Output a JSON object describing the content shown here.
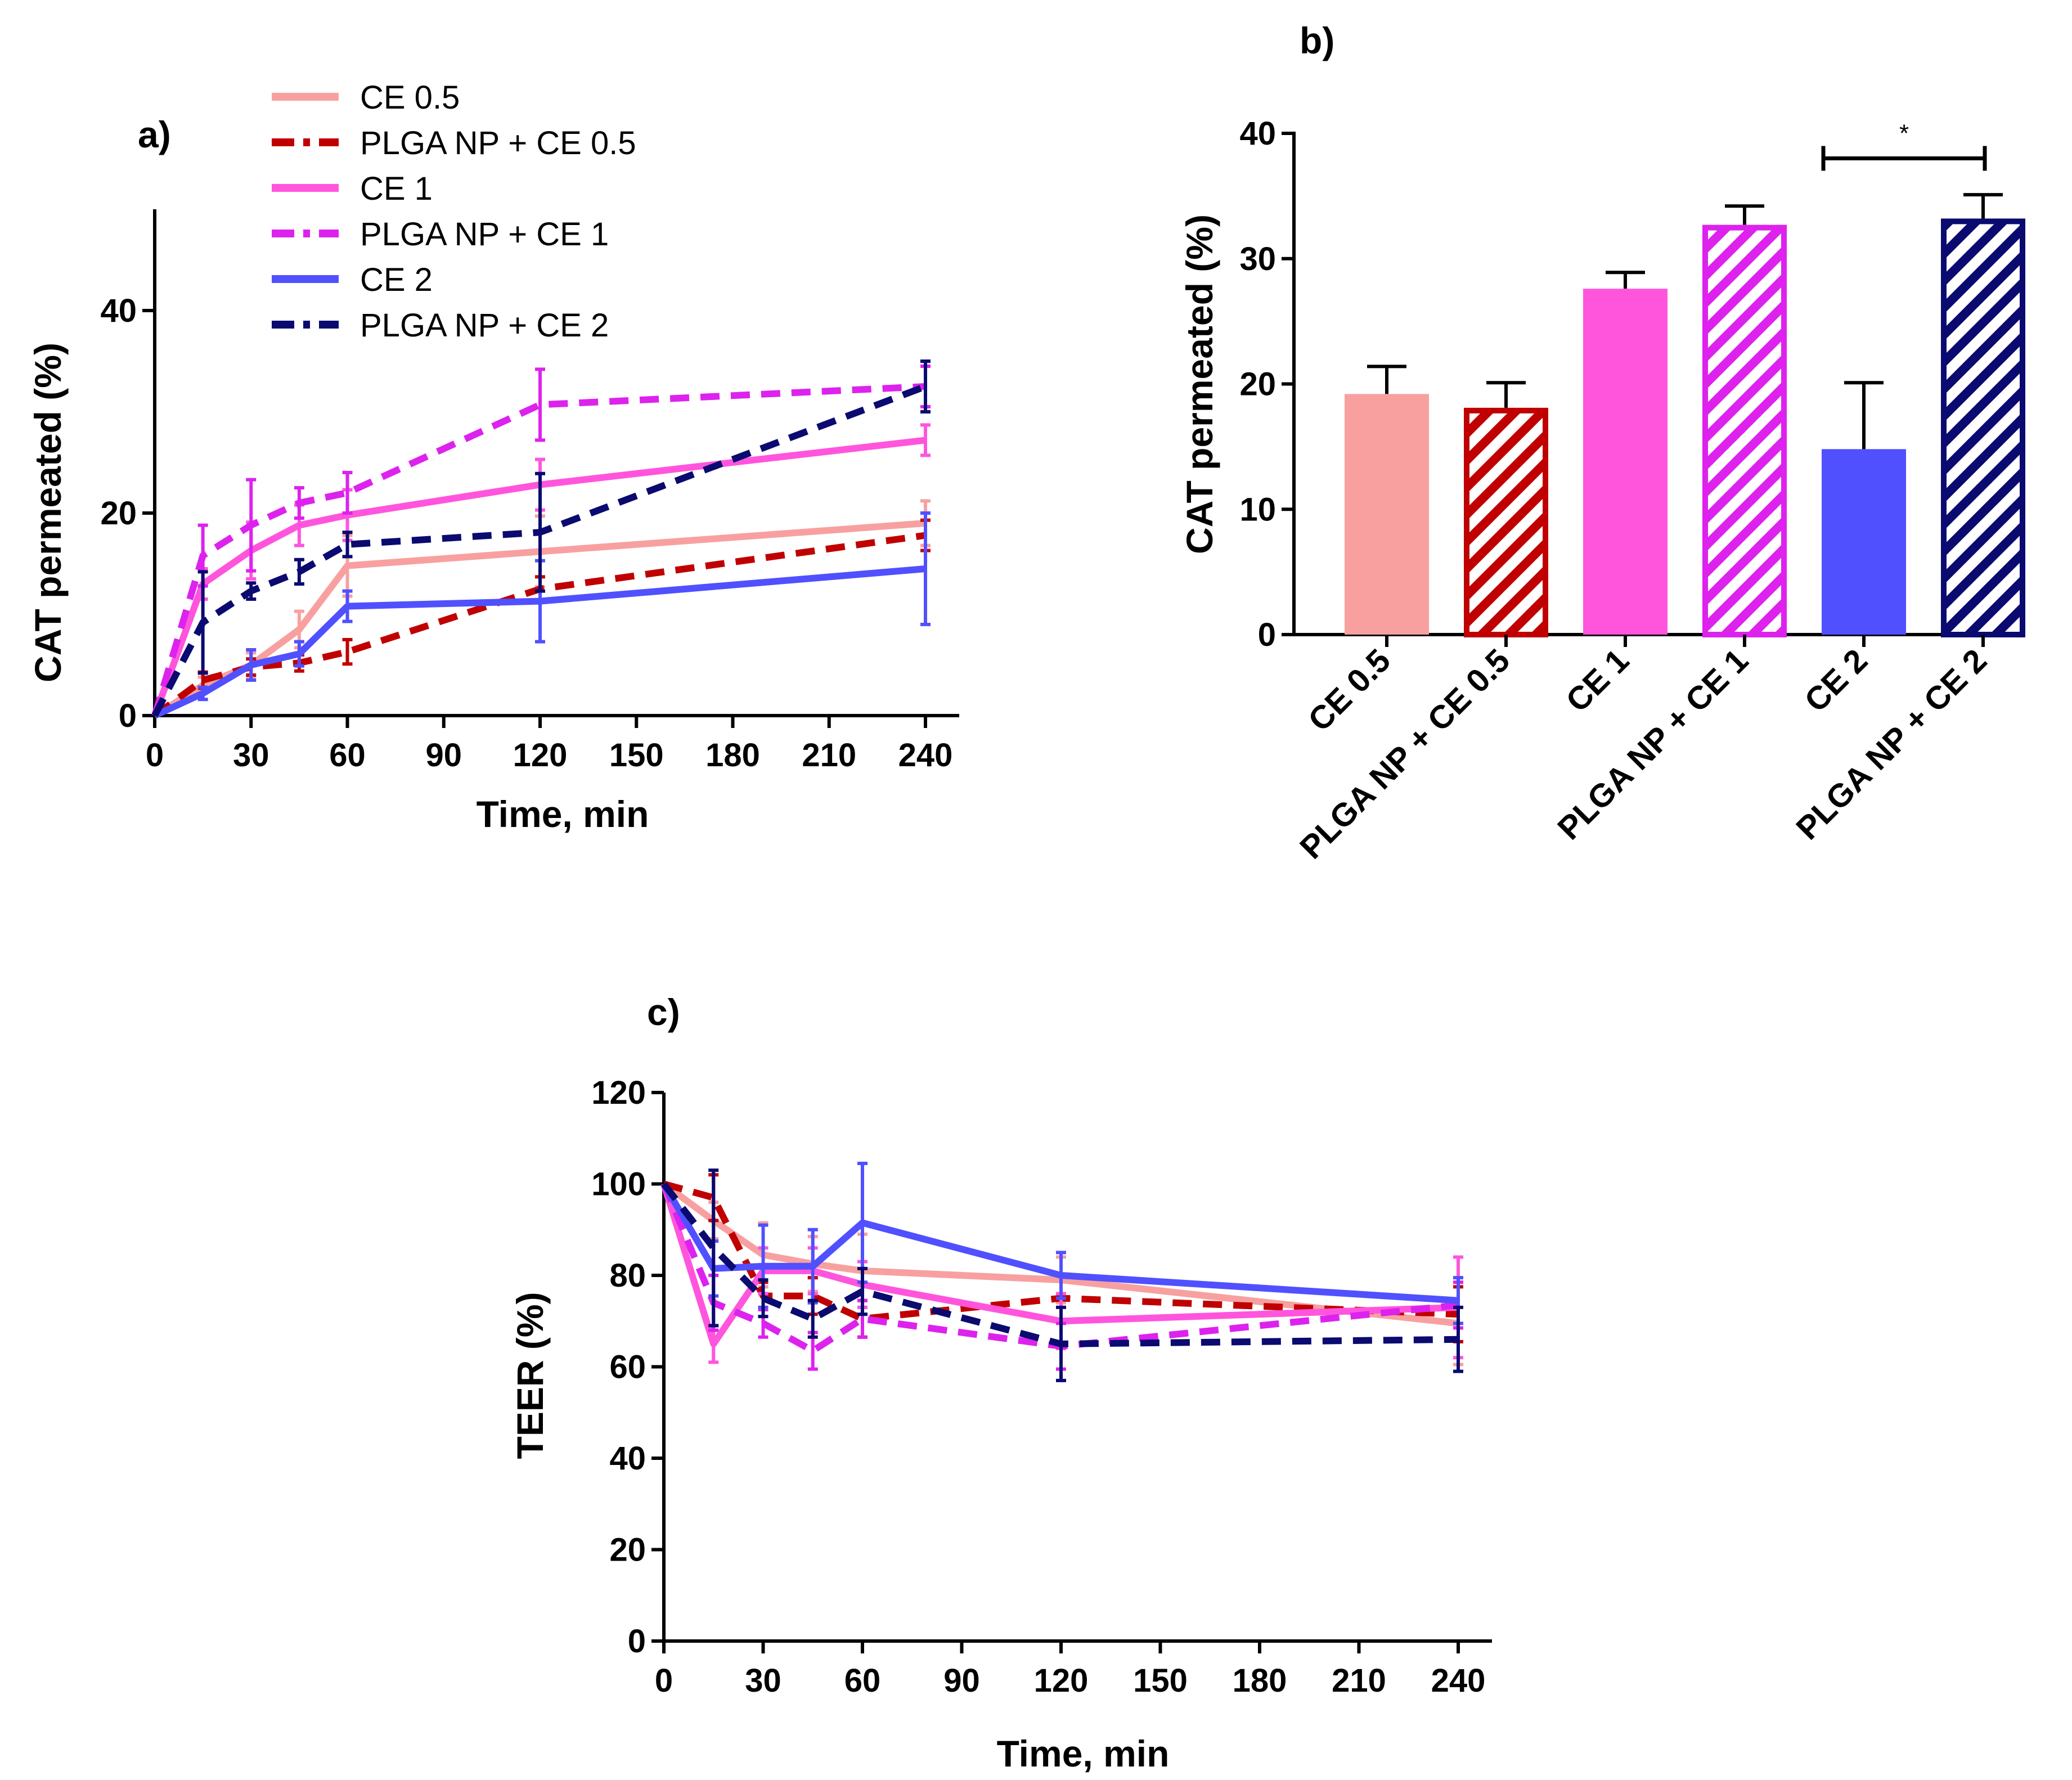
{
  "series": [
    {
      "key": "ce05",
      "name": "CE 0.5",
      "color": "#F8A0A0",
      "dashed": false,
      "hatched": false
    },
    {
      "key": "np05",
      "name": "PLGA NP + CE 0.5",
      "color": "#C00000",
      "dashed": true,
      "hatched": true
    },
    {
      "key": "ce1",
      "name": "CE 1",
      "color": "#FF55DD",
      "dashed": false,
      "hatched": false
    },
    {
      "key": "np1",
      "name": "PLGA NP + CE 1",
      "color": "#DD22EE",
      "dashed": true,
      "hatched": true
    },
    {
      "key": "ce2",
      "name": "CE 2",
      "color": "#5050FF",
      "dashed": false,
      "hatched": false
    },
    {
      "key": "np2",
      "name": "PLGA NP + CE 2",
      "color": "#0A0A70",
      "dashed": true,
      "hatched": true
    }
  ],
  "chart_data": [
    {
      "id": "a",
      "panel_label": "a)",
      "type": "line",
      "xlabel": "Time, min",
      "ylabel": "CAT permeated (%)",
      "xlim": [
        0,
        240
      ],
      "ylim": [
        0,
        50
      ],
      "xticks": [
        0,
        30,
        60,
        90,
        120,
        150,
        180,
        210,
        240
      ],
      "yticks": [
        0,
        20,
        40
      ],
      "legend": "top",
      "x": [
        0,
        15,
        30,
        45,
        60,
        120,
        240
      ],
      "series": [
        {
          "key": "ce05",
          "values": [
            0,
            3,
            5,
            8.5,
            14.8,
            16.2,
            19
          ],
          "errors": [
            0,
            0.8,
            1.2,
            1.8,
            3,
            3.5,
            2.2
          ]
        },
        {
          "key": "np05",
          "values": [
            0,
            3.5,
            4.8,
            5.2,
            6.3,
            12.5,
            17.8
          ],
          "errors": [
            0,
            0.8,
            0.8,
            0.8,
            1.2,
            1.2,
            1.5
          ]
        },
        {
          "key": "ce1",
          "values": [
            0,
            13,
            16.3,
            18.8,
            19.8,
            22.8,
            27.2
          ],
          "errors": [
            0,
            1.5,
            2.8,
            2,
            2.5,
            2.5,
            1.5
          ]
        },
        {
          "key": "np1",
          "values": [
            0,
            15.8,
            18.8,
            21,
            22,
            30.7,
            32.5
          ],
          "errors": [
            0,
            3,
            4.5,
            1.5,
            2,
            3.5,
            2
          ]
        },
        {
          "key": "ce2",
          "values": [
            0,
            2.2,
            5,
            6.1,
            10.8,
            11.3,
            14.5
          ],
          "errors": [
            0,
            0.6,
            1.5,
            1.2,
            1.5,
            4,
            5.5
          ]
        },
        {
          "key": "np2",
          "values": [
            0,
            9.2,
            12.3,
            14.2,
            16.9,
            18.1,
            32.5
          ],
          "errors": [
            0,
            5,
            0.8,
            1.2,
            1.2,
            5.8,
            2.5
          ]
        }
      ]
    },
    {
      "id": "b",
      "panel_label": "b)",
      "type": "bar",
      "ylabel": "CAT permeated (%)",
      "ylim": [
        0,
        40
      ],
      "yticks": [
        0,
        10,
        20,
        30,
        40
      ],
      "categories": [
        "CE 0.5",
        "PLGA NP + CE 0.5",
        "CE 1",
        "PLGA NP + CE 1",
        "CE 2",
        "PLGA NP + CE 2"
      ],
      "values": [
        19.2,
        18.1,
        27.6,
        32.7,
        14.8,
        33.2
      ],
      "errors": [
        2.2,
        2,
        1.3,
        1.5,
        5.3,
        1.9
      ],
      "significance": {
        "from_index": 4,
        "to_index": 5,
        "label": "*",
        "y": 38
      }
    },
    {
      "id": "c",
      "panel_label": "c)",
      "type": "line",
      "xlabel": "Time, min",
      "ylabel": "TEER (%)",
      "xlim": [
        0,
        240
      ],
      "ylim": [
        0,
        120
      ],
      "xticks": [
        0,
        30,
        60,
        90,
        120,
        150,
        180,
        210,
        240
      ],
      "yticks": [
        0,
        20,
        40,
        60,
        80,
        100,
        120
      ],
      "x": [
        0,
        15,
        30,
        45,
        60,
        120,
        240
      ],
      "series": [
        {
          "key": "ce05",
          "values": [
            100,
            92,
            84.5,
            82.5,
            81,
            79,
            69.5
          ],
          "errors": [
            0,
            4,
            7,
            6,
            8,
            5,
            9
          ]
        },
        {
          "key": "np05",
          "values": [
            100,
            97,
            75.5,
            75.5,
            70.5,
            75,
            71.5
          ],
          "errors": [
            0,
            5,
            3,
            4,
            4,
            5,
            6
          ]
        },
        {
          "key": "ce1",
          "values": [
            100,
            65,
            81,
            81,
            78,
            70,
            73
          ],
          "errors": [
            0,
            4,
            5,
            5,
            5,
            6,
            11
          ]
        },
        {
          "key": "np1",
          "values": [
            100,
            74,
            69.5,
            63.5,
            70.5,
            64.5,
            73.5
          ],
          "errors": [
            0,
            6,
            3,
            4,
            4,
            5,
            5
          ]
        },
        {
          "key": "ce2",
          "values": [
            100,
            81.5,
            82,
            82,
            91.5,
            80,
            74.5
          ],
          "errors": [
            0,
            6,
            9,
            8,
            13,
            5,
            5
          ]
        },
        {
          "key": "np2",
          "values": [
            100,
            86,
            75,
            70.5,
            76.5,
            65,
            66
          ],
          "errors": [
            0,
            17,
            4,
            4,
            5,
            8,
            7
          ]
        }
      ]
    }
  ]
}
